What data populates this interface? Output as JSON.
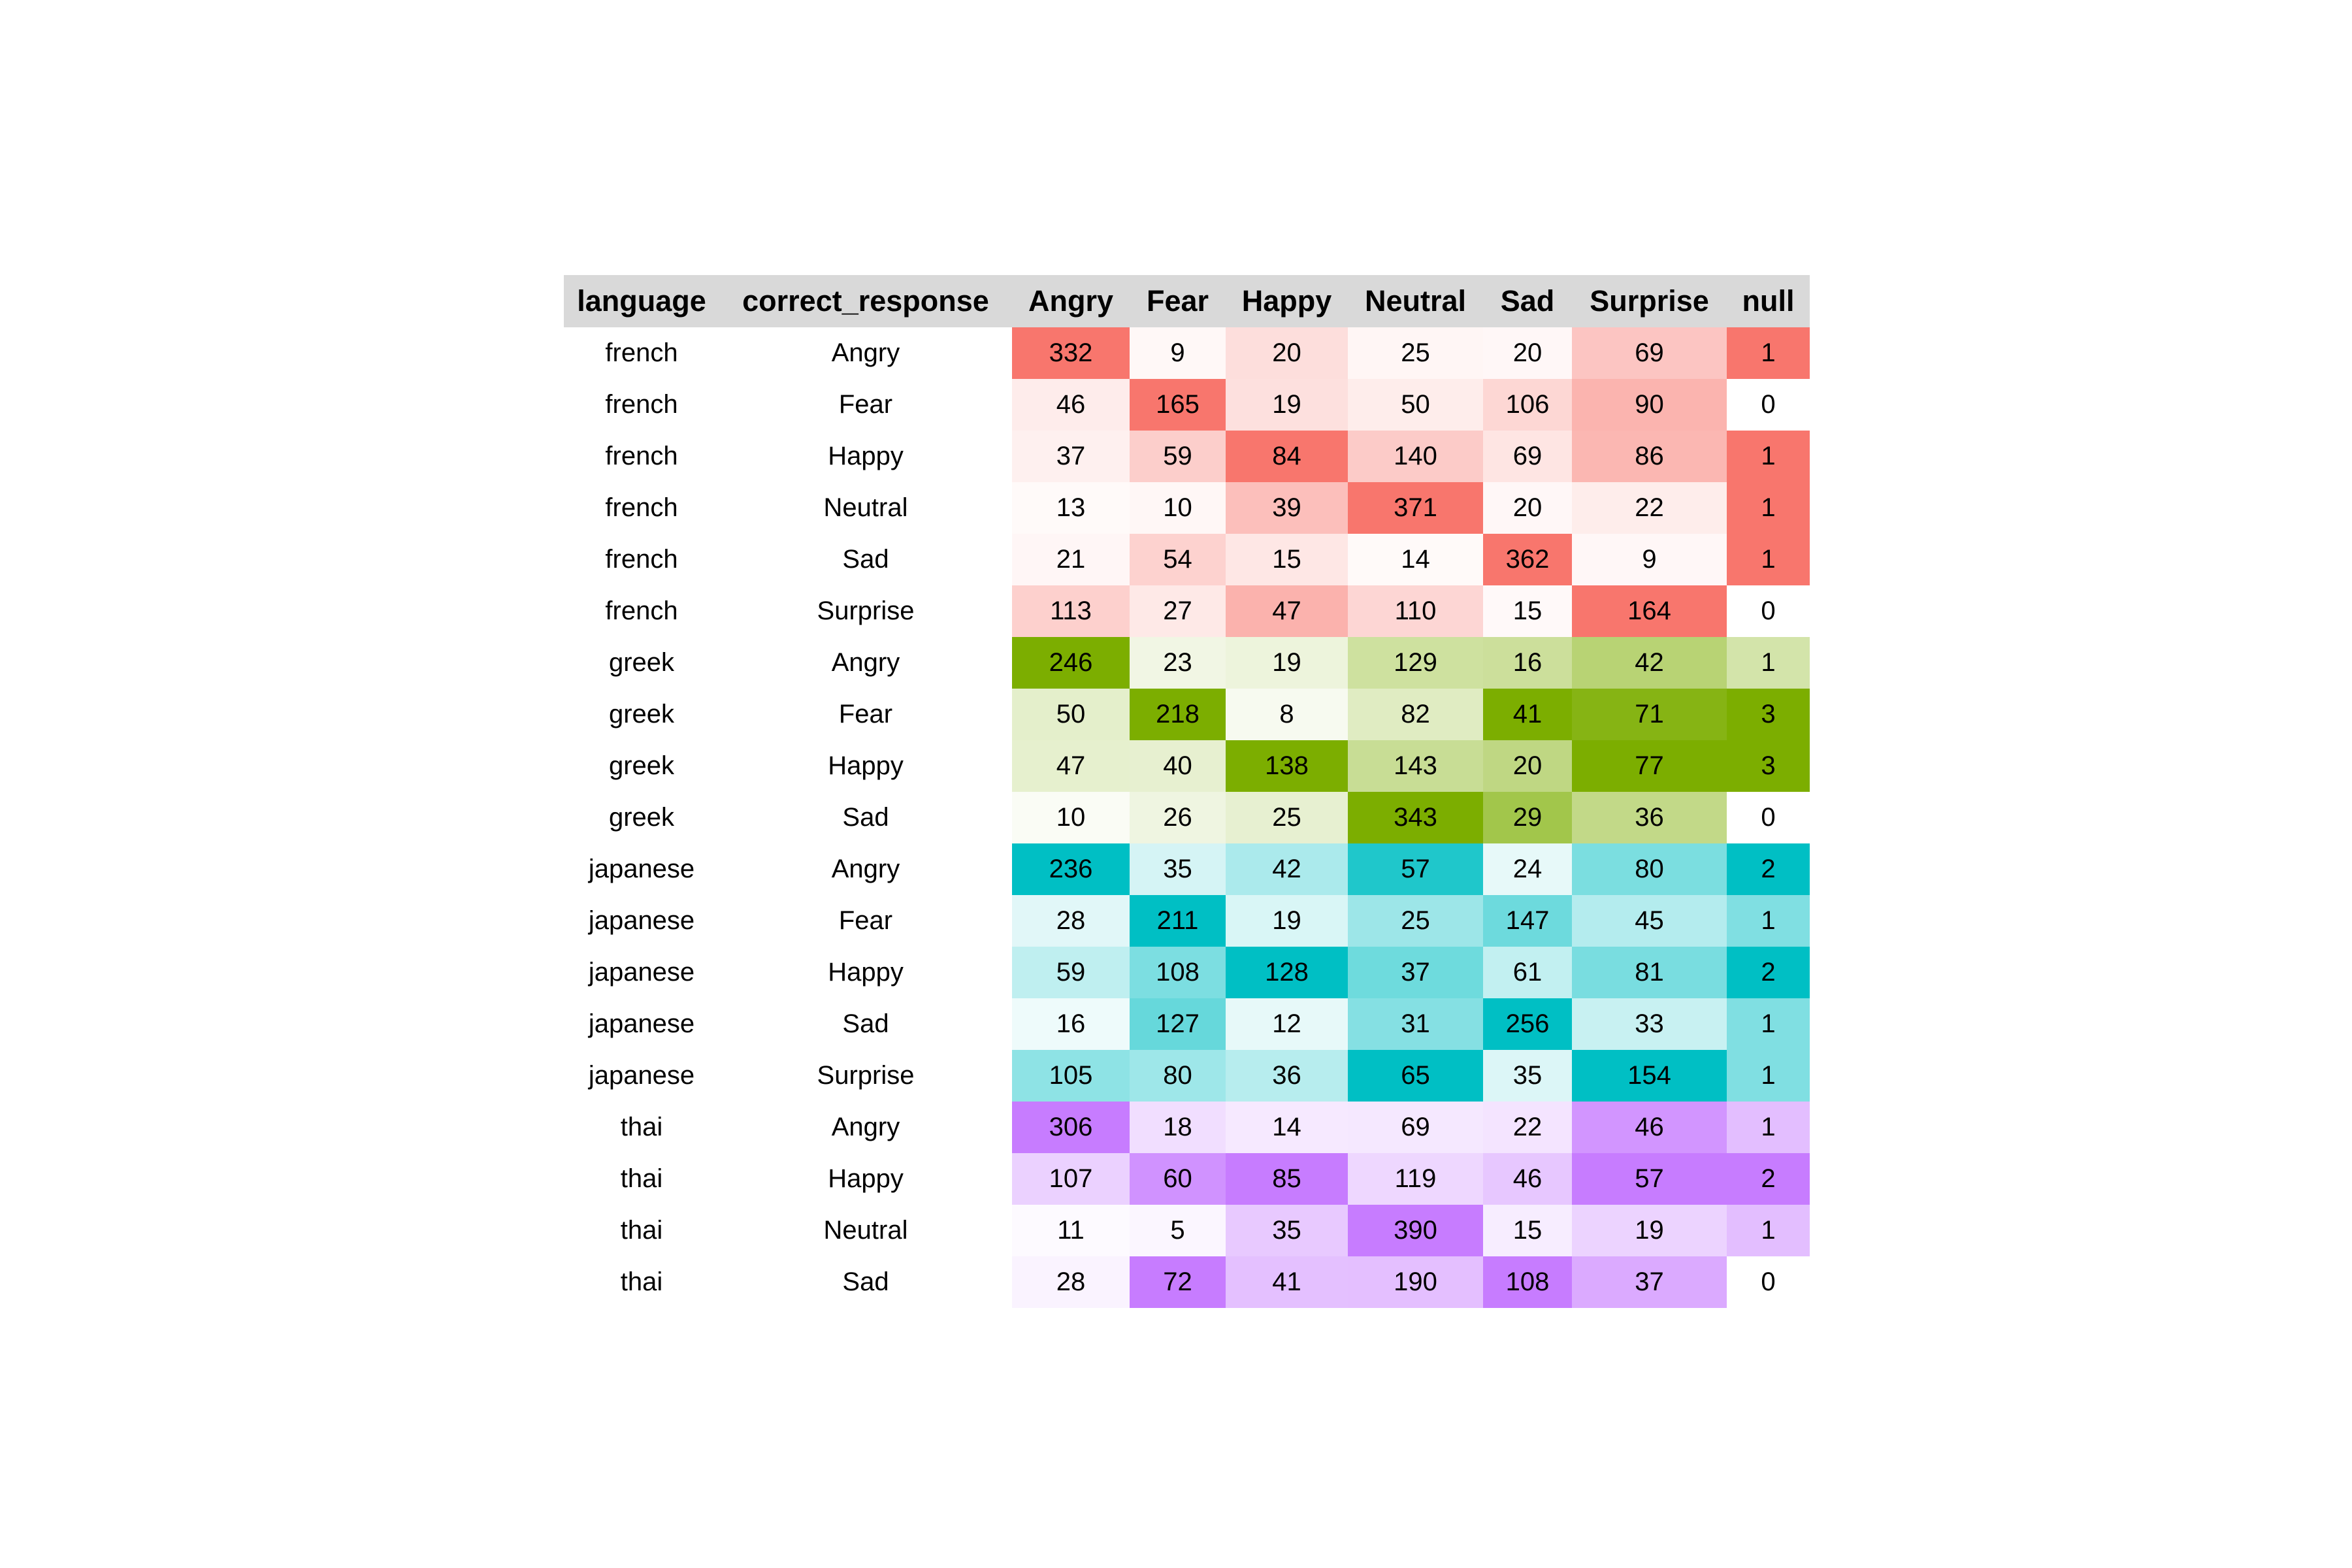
{
  "chart_data": {
    "type": "table",
    "columns": [
      "language",
      "correct_response",
      "Angry",
      "Fear",
      "Happy",
      "Neutral",
      "Sad",
      "Surprise",
      "null"
    ],
    "rows": [
      [
        "french",
        "Angry",
        332,
        9,
        20,
        25,
        20,
        69,
        1
      ],
      [
        "french",
        "Fear",
        46,
        165,
        19,
        50,
        106,
        90,
        0
      ],
      [
        "french",
        "Happy",
        37,
        59,
        84,
        140,
        69,
        86,
        1
      ],
      [
        "french",
        "Neutral",
        13,
        10,
        39,
        371,
        20,
        22,
        1
      ],
      [
        "french",
        "Sad",
        21,
        54,
        15,
        14,
        362,
        9,
        1
      ],
      [
        "french",
        "Surprise",
        113,
        27,
        47,
        110,
        15,
        164,
        0
      ],
      [
        "greek",
        "Angry",
        246,
        23,
        19,
        129,
        16,
        42,
        1
      ],
      [
        "greek",
        "Fear",
        50,
        218,
        8,
        82,
        41,
        71,
        3
      ],
      [
        "greek",
        "Happy",
        47,
        40,
        138,
        143,
        20,
        77,
        3
      ],
      [
        "greek",
        "Sad",
        10,
        26,
        25,
        343,
        29,
        36,
        0
      ],
      [
        "japanese",
        "Angry",
        236,
        35,
        42,
        57,
        24,
        80,
        2
      ],
      [
        "japanese",
        "Fear",
        28,
        211,
        19,
        25,
        147,
        45,
        1
      ],
      [
        "japanese",
        "Happy",
        59,
        108,
        128,
        37,
        61,
        81,
        2
      ],
      [
        "japanese",
        "Sad",
        16,
        127,
        12,
        31,
        256,
        33,
        1
      ],
      [
        "japanese",
        "Surprise",
        105,
        80,
        36,
        65,
        35,
        154,
        1
      ],
      [
        "thai",
        "Angry",
        306,
        18,
        14,
        69,
        22,
        46,
        1
      ],
      [
        "thai",
        "Happy",
        107,
        60,
        85,
        119,
        46,
        57,
        2
      ],
      [
        "thai",
        "Neutral",
        11,
        5,
        35,
        390,
        15,
        19,
        1
      ],
      [
        "thai",
        "Sad",
        28,
        72,
        41,
        190,
        108,
        37,
        0
      ]
    ],
    "group_colors": {
      "french": "#f8766d",
      "greek": "#7cae00",
      "japanese": "#00bfc4",
      "thai": "#c77cff"
    },
    "header_background": "#d9d9d9"
  }
}
